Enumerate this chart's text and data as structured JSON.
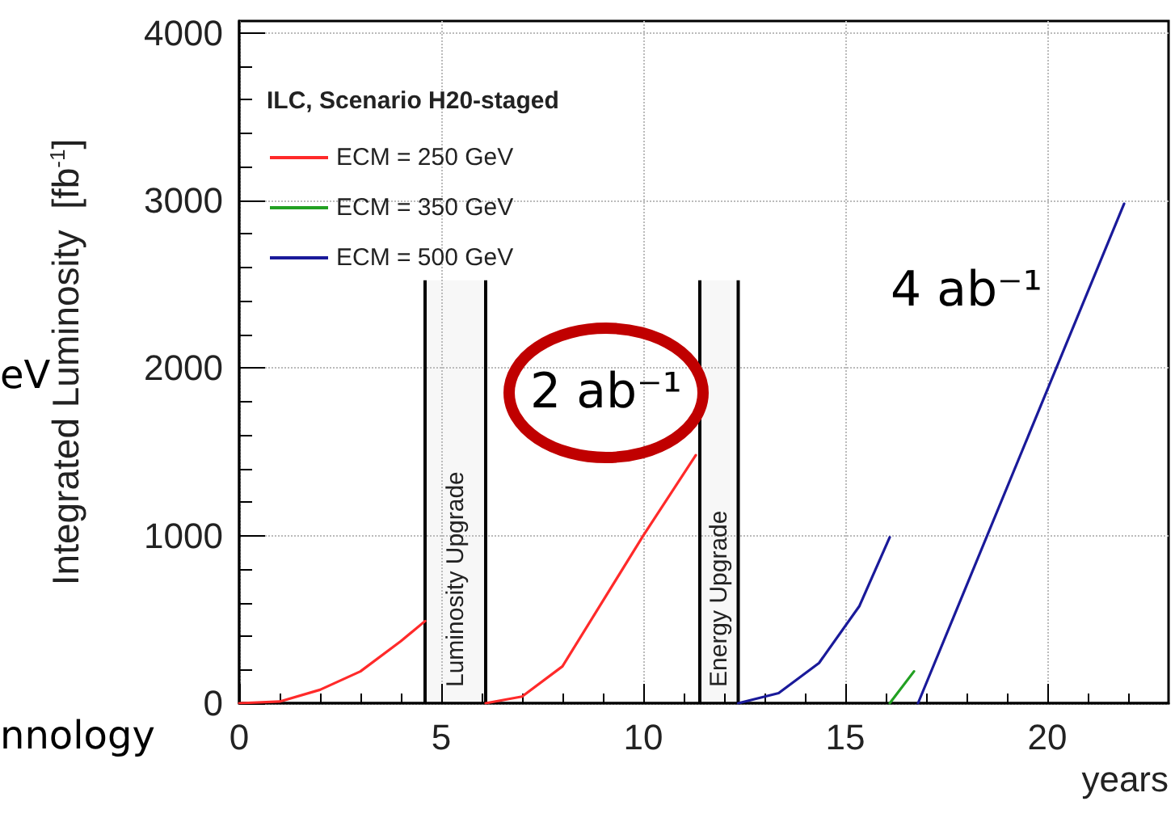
{
  "chart_data": {
    "type": "line",
    "xlabel": "years",
    "ylabel": "Integrated Luminosity  [fb$^{-1}$]",
    "legend_title": "ILC, Scenario H20-staged",
    "xlim": [
      0,
      23
    ],
    "xticks": [
      0,
      5,
      10,
      15,
      20
    ],
    "ylim": [
      0,
      4070
    ],
    "yticks": [
      0,
      1000,
      2000,
      3000,
      4000
    ],
    "grid": true,
    "legend": "top left",
    "marker": "none",
    "line_style": "solid",
    "series": [
      {
        "name": "ECM = 250 GeV",
        "color": "#ff2a2a",
        "x": [
          0,
          1,
          2,
          3,
          4,
          4.6,
          5.3,
          6.1,
          7,
          8,
          10,
          11.3
        ],
        "values": [
          0,
          10,
          80,
          190,
          370,
          490,
          null,
          0,
          40,
          220,
          1000,
          1480
        ]
      },
      {
        "name": "ECM = 350 GeV",
        "color": "#22a022",
        "x": [
          16.1,
          16.7
        ],
        "values": [
          0,
          190
        ]
      },
      {
        "name": "ECM = 500 GeV",
        "color": "#1a1a9a",
        "x": [
          12.35,
          13.35,
          14.35,
          15.35,
          16.1,
          16.4,
          16.8,
          21.9
        ],
        "values": [
          0,
          60,
          240,
          580,
          990,
          null,
          0,
          2980
        ]
      }
    ],
    "bands": [
      {
        "axis": "x",
        "from": 4.6,
        "to": 6.1,
        "label": "Luminosity Upgrade"
      },
      {
        "axis": "x",
        "from": 11.4,
        "to": 12.35,
        "label": "Energy Upgrade"
      }
    ],
    "annotations": [
      "2 ab⁻¹",
      "4 ab⁻¹",
      "eV",
      "nnology"
    ]
  }
}
